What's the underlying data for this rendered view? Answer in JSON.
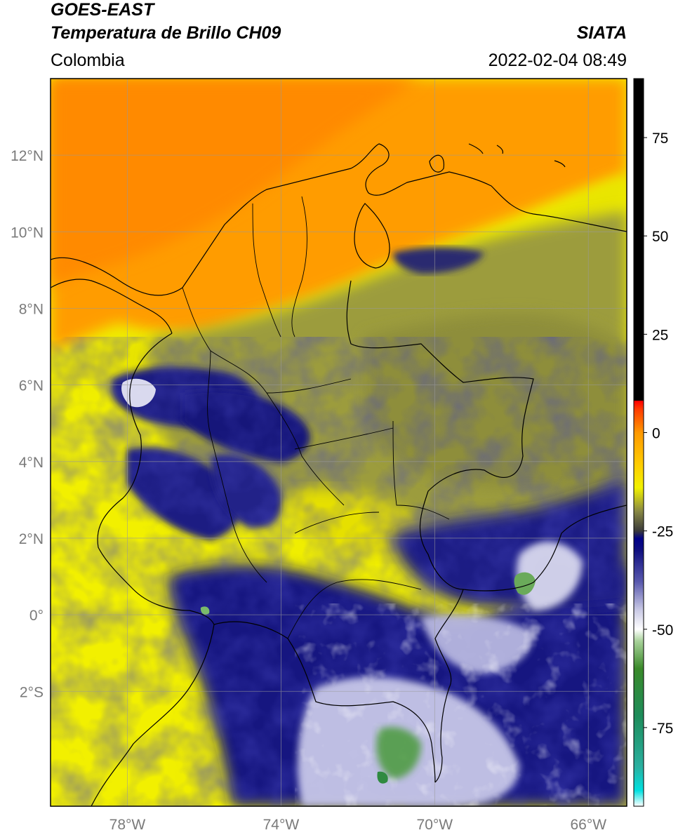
{
  "header": {
    "satellite": "GOES-EAST",
    "product": "Temperatura de Brillo CH09",
    "region": "Colombia",
    "agency": "SIATA",
    "datetime": "2022-02-04 08:49"
  },
  "map": {
    "lon_range": [
      -80.0,
      -65.0
    ],
    "lat_range": [
      -5.0,
      14.0
    ],
    "grid": true,
    "lat_ticks": [
      {
        "value": 12,
        "label": "12°N"
      },
      {
        "value": 10,
        "label": "10°N"
      },
      {
        "value": 8,
        "label": "8°N"
      },
      {
        "value": 6,
        "label": "6°N"
      },
      {
        "value": 4,
        "label": "4°N"
      },
      {
        "value": 2,
        "label": "2°N"
      },
      {
        "value": 0,
        "label": "0°"
      },
      {
        "value": -2,
        "label": "2°S"
      }
    ],
    "lon_ticks": [
      {
        "value": -78,
        "label": "78°W"
      },
      {
        "value": -74,
        "label": "74°W"
      },
      {
        "value": -70,
        "label": "70°W"
      },
      {
        "value": -66,
        "label": "66°W"
      }
    ]
  },
  "colorbar": {
    "range": [
      -95,
      90
    ],
    "ticks": [
      {
        "value": 75,
        "label": "75"
      },
      {
        "value": 50,
        "label": "50"
      },
      {
        "value": 25,
        "label": "25"
      },
      {
        "value": 0,
        "label": "0"
      },
      {
        "value": -25,
        "label": "-25"
      },
      {
        "value": -50,
        "label": "-50"
      },
      {
        "value": -75,
        "label": "-75"
      }
    ],
    "stops": [
      {
        "value": -95,
        "color": "#ffffff"
      },
      {
        "value": -91,
        "color": "#00e0e0"
      },
      {
        "value": -85,
        "color": "#2ab0a0"
      },
      {
        "value": -72,
        "color": "#1e8c5a"
      },
      {
        "value": -60,
        "color": "#3a8a2a"
      },
      {
        "value": -53,
        "color": "#a8d29a"
      },
      {
        "value": -50,
        "color": "#ffffff"
      },
      {
        "value": -45,
        "color": "#c8c8e4"
      },
      {
        "value": -38,
        "color": "#5a5aae"
      },
      {
        "value": -30,
        "color": "#101080"
      },
      {
        "value": -27,
        "color": "#000088"
      },
      {
        "value": -25,
        "color": "#3a3a3a"
      },
      {
        "value": -20,
        "color": "#888844"
      },
      {
        "value": -14,
        "color": "#f2f200"
      },
      {
        "value": -8,
        "color": "#ffcc00"
      },
      {
        "value": 0,
        "color": "#ff9900"
      },
      {
        "value": 6,
        "color": "#ff3a00"
      },
      {
        "value": 8,
        "color": "#ff0000"
      },
      {
        "value": 8.2,
        "color": "#000000"
      },
      {
        "value": 90,
        "color": "#000000"
      }
    ]
  },
  "colors": {
    "cold_cloud": "#101080",
    "warm_clear": "#ff9900",
    "mid_yellow": "#f2f200",
    "olive": "#9a9a3a",
    "border": "#000000",
    "grid": "#9a9a9a"
  }
}
